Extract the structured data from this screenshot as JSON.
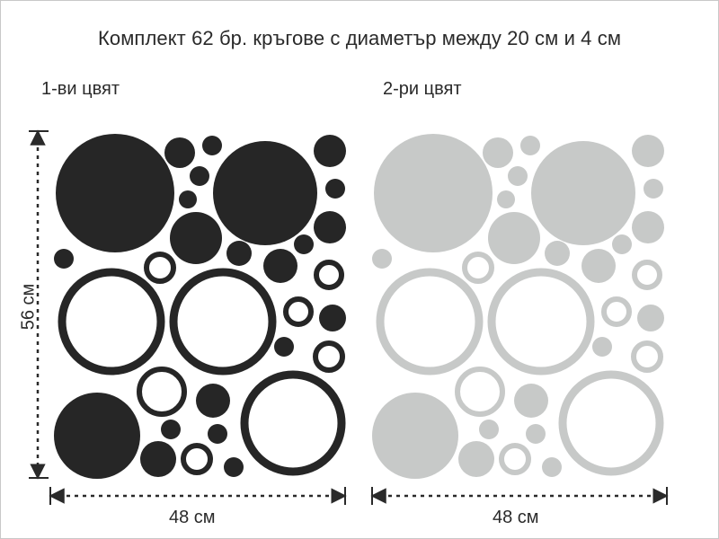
{
  "title": "Комплект 62 бр. кръгове с диаметър между 20 см и 4 см",
  "variants": [
    {
      "label": "1-ви цвят",
      "color": "#262626"
    },
    {
      "label": "2-ри цвят",
      "color": "#c7c9c8"
    }
  ],
  "dimensions": {
    "width_label": "48 см",
    "height_label": "56 см",
    "arrow_color": "#2a2a2a"
  }
}
